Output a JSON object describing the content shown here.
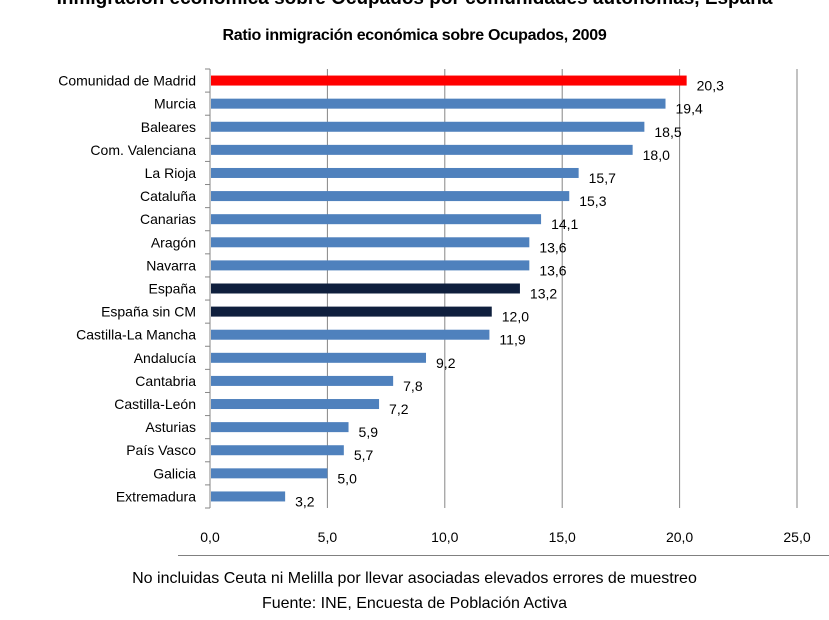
{
  "header": {
    "top_title": "Inmigración económica sobre Ocupados por comunidades autónomas, España"
  },
  "chart_data": {
    "type": "bar",
    "orientation": "horizontal",
    "title": "Ratio inmigración económica sobre Ocupados, 2009",
    "xlabel": "",
    "ylabel": "",
    "categories": [
      "Comunidad de Madrid",
      "Murcia",
      "Baleares",
      "Com. Valenciana",
      "La Rioja",
      "Cataluña",
      "Canarias",
      "Aragón",
      "Navarra",
      "España",
      "España sin CM",
      "Castilla-La Mancha",
      "Andalucía",
      "Cantabria",
      "Castilla-León",
      "Asturias",
      "País Vasco",
      "Galicia",
      "Extremadura"
    ],
    "values": [
      20.3,
      19.4,
      18.5,
      18.0,
      15.7,
      15.3,
      14.1,
      13.6,
      13.6,
      13.2,
      12.0,
      11.9,
      9.2,
      7.8,
      7.2,
      5.9,
      5.7,
      5.0,
      3.2
    ],
    "value_labels": [
      "20,3",
      "19,4",
      "18,5",
      "18,0",
      "15,7",
      "15,3",
      "14,1",
      "13,6",
      "13,6",
      "13,2",
      "12,0",
      "11,9",
      "9,2",
      "7,8",
      "7,2",
      "5,9",
      "5,7",
      "5,0",
      "3,2"
    ],
    "xlim": [
      0,
      25
    ],
    "xticks": [
      0,
      5,
      10,
      15,
      20,
      25
    ],
    "xtick_labels": [
      "0,0",
      "5,0",
      "10,0",
      "15,0",
      "20,0",
      "25,0"
    ],
    "grid": "vertical",
    "colors": {
      "default": "#4f81bd",
      "highlight": "#ff0000",
      "aggregate": "#0f1f3d"
    },
    "bar_colors": [
      "highlight",
      "default",
      "default",
      "default",
      "default",
      "default",
      "default",
      "default",
      "default",
      "aggregate",
      "aggregate",
      "default",
      "default",
      "default",
      "default",
      "default",
      "default",
      "default",
      "default"
    ]
  },
  "footer": {
    "note": "No incluidas Ceuta ni Melilla por llevar asociadas elevados errores de muestreo",
    "source": "Fuente: INE, Encuesta de Población Activa"
  }
}
